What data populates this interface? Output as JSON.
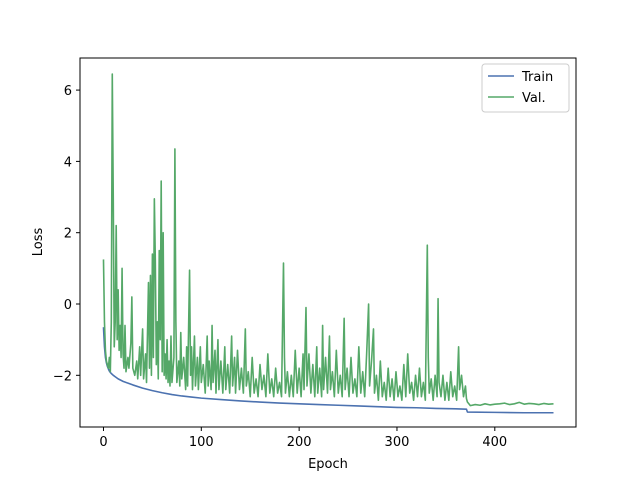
{
  "chart_data": {
    "type": "line",
    "title": "",
    "xlabel": "Epoch",
    "ylabel": "Loss",
    "xlim": [
      -24,
      483
    ],
    "ylim": [
      -3.45,
      6.9
    ],
    "xticks": [
      0,
      100,
      200,
      300,
      400
    ],
    "yticks": [
      -2,
      0,
      2,
      4,
      6
    ],
    "grid": false,
    "legend": "top-right",
    "series": [
      {
        "name": "Train",
        "color": "#4c72b0",
        "points": [
          [
            0,
            -0.65
          ],
          [
            1,
            -1.2
          ],
          [
            2,
            -1.5
          ],
          [
            3,
            -1.65
          ],
          [
            4,
            -1.75
          ],
          [
            5,
            -1.82
          ],
          [
            6,
            -1.88
          ],
          [
            7,
            -1.92
          ],
          [
            8,
            -1.95
          ],
          [
            10,
            -2.0
          ],
          [
            12,
            -2.04
          ],
          [
            15,
            -2.1
          ],
          [
            20,
            -2.17
          ],
          [
            25,
            -2.22
          ],
          [
            30,
            -2.27
          ],
          [
            40,
            -2.36
          ],
          [
            50,
            -2.43
          ],
          [
            60,
            -2.49
          ],
          [
            70,
            -2.54
          ],
          [
            80,
            -2.58
          ],
          [
            90,
            -2.61
          ],
          [
            100,
            -2.64
          ],
          [
            120,
            -2.68
          ],
          [
            140,
            -2.72
          ],
          [
            160,
            -2.75
          ],
          [
            180,
            -2.78
          ],
          [
            200,
            -2.8
          ],
          [
            220,
            -2.82
          ],
          [
            240,
            -2.84
          ],
          [
            260,
            -2.86
          ],
          [
            280,
            -2.88
          ],
          [
            300,
            -2.9
          ],
          [
            320,
            -2.91
          ],
          [
            340,
            -2.93
          ],
          [
            360,
            -2.94
          ],
          [
            371,
            -2.95
          ],
          [
            372,
            -3.03
          ],
          [
            400,
            -3.04
          ],
          [
            430,
            -3.05
          ],
          [
            460,
            -3.05
          ]
        ]
      },
      {
        "name": "Val.",
        "color": "#55a868",
        "points": [
          [
            0,
            1.25
          ],
          [
            1,
            -0.5
          ],
          [
            2,
            -1.3
          ],
          [
            3,
            -1.6
          ],
          [
            4,
            -1.7
          ],
          [
            5,
            -1.8
          ],
          [
            6,
            -1.5
          ],
          [
            7,
            -1.9
          ],
          [
            8,
            -0.5
          ],
          [
            9,
            6.45
          ],
          [
            10,
            3.0
          ],
          [
            11,
            -1.2
          ],
          [
            12,
            -0.5
          ],
          [
            13,
            2.2
          ],
          [
            14,
            -1.0
          ],
          [
            15,
            0.4
          ],
          [
            16,
            -1.3
          ],
          [
            17,
            -0.6
          ],
          [
            18,
            -1.5
          ],
          [
            19,
            1.0
          ],
          [
            20,
            -1.4
          ],
          [
            21,
            -1.8
          ],
          [
            22,
            -0.6
          ],
          [
            23,
            -1.9
          ],
          [
            25,
            -1.5
          ],
          [
            26,
            -1.8
          ],
          [
            28,
            -1.1
          ],
          [
            29,
            0.2
          ],
          [
            30,
            -1.8
          ],
          [
            32,
            -2.0
          ],
          [
            34,
            -1.6
          ],
          [
            35,
            -2.1
          ],
          [
            37,
            -1.2
          ],
          [
            38,
            -2.0
          ],
          [
            40,
            -0.7
          ],
          [
            41,
            -2.1
          ],
          [
            43,
            -1.4
          ],
          [
            44,
            -2.2
          ],
          [
            46,
            0.6
          ],
          [
            47,
            -1.8
          ],
          [
            48,
            0.8
          ],
          [
            49,
            -2.0
          ],
          [
            50,
            1.4
          ],
          [
            51,
            -1.5
          ],
          [
            52,
            2.95
          ],
          [
            53,
            1.2
          ],
          [
            54,
            -1.7
          ],
          [
            55,
            -0.5
          ],
          [
            56,
            -2.1
          ],
          [
            57,
            1.5
          ],
          [
            58,
            -1.0
          ],
          [
            59,
            3.45
          ],
          [
            60,
            -1.9
          ],
          [
            61,
            2.0
          ],
          [
            62,
            -2.0
          ],
          [
            63,
            -1.4
          ],
          [
            64,
            -2.1
          ],
          [
            65,
            -1.0
          ],
          [
            66,
            -2.2
          ],
          [
            67,
            -1.6
          ],
          [
            68,
            -2.3
          ],
          [
            69,
            -0.9
          ],
          [
            70,
            -2.2
          ],
          [
            72,
            -1.5
          ],
          [
            73,
            4.35
          ],
          [
            74,
            -0.5
          ],
          [
            75,
            -2.2
          ],
          [
            77,
            -1.6
          ],
          [
            78,
            -2.3
          ],
          [
            79,
            -0.8
          ],
          [
            80,
            -2.1
          ],
          [
            82,
            -1.5
          ],
          [
            84,
            -2.4
          ],
          [
            85,
            -1.2
          ],
          [
            86,
            -2.3
          ],
          [
            88,
            0.95
          ],
          [
            89,
            -2.0
          ],
          [
            90,
            -1.2
          ],
          [
            91,
            -2.4
          ],
          [
            93,
            -0.9
          ],
          [
            94,
            -2.3
          ],
          [
            96,
            -1.5
          ],
          [
            97,
            -2.4
          ],
          [
            99,
            -1.2
          ],
          [
            100,
            -2.2
          ],
          [
            102,
            -1.7
          ],
          [
            104,
            -2.5
          ],
          [
            106,
            -0.9
          ],
          [
            107,
            -2.3
          ],
          [
            108,
            -1.6
          ],
          [
            110,
            -2.4
          ],
          [
            111,
            -0.6
          ],
          [
            112,
            -2.2
          ],
          [
            114,
            -1.3
          ],
          [
            115,
            -2.5
          ],
          [
            117,
            -1.0
          ],
          [
            118,
            -2.4
          ],
          [
            120,
            -1.6
          ],
          [
            122,
            -2.5
          ],
          [
            124,
            -1.2
          ],
          [
            125,
            -2.4
          ],
          [
            127,
            -1.7
          ],
          [
            129,
            -2.5
          ],
          [
            131,
            -0.9
          ],
          [
            132,
            -2.3
          ],
          [
            134,
            -1.5
          ],
          [
            135,
            -2.5
          ],
          [
            137,
            -1.3
          ],
          [
            139,
            -2.4
          ],
          [
            141,
            -1.8
          ],
          [
            143,
            -2.5
          ],
          [
            145,
            -0.7
          ],
          [
            146,
            -2.3
          ],
          [
            148,
            -1.9
          ],
          [
            150,
            -2.6
          ],
          [
            152,
            -1.5
          ],
          [
            154,
            -2.5
          ],
          [
            156,
            -2.1
          ],
          [
            158,
            -2.6
          ],
          [
            160,
            -1.7
          ],
          [
            162,
            -2.4
          ],
          [
            164,
            -2.0
          ],
          [
            166,
            -2.6
          ],
          [
            168,
            -1.4
          ],
          [
            170,
            -2.5
          ],
          [
            172,
            -2.1
          ],
          [
            174,
            -2.6
          ],
          [
            176,
            -1.8
          ],
          [
            178,
            -2.5
          ],
          [
            180,
            -2.2
          ],
          [
            182,
            -2.6
          ],
          [
            184,
            1.15
          ],
          [
            185,
            -1.5
          ],
          [
            186,
            -2.5
          ],
          [
            188,
            -1.9
          ],
          [
            190,
            -2.6
          ],
          [
            192,
            -2.0
          ],
          [
            194,
            -2.6
          ],
          [
            196,
            -1.3
          ],
          [
            198,
            -2.5
          ],
          [
            200,
            -1.8
          ],
          [
            202,
            -2.6
          ],
          [
            204,
            -1.4
          ],
          [
            205,
            -2.4
          ],
          [
            207,
            -0.1
          ],
          [
            208,
            -2.3
          ],
          [
            210,
            -1.4
          ],
          [
            212,
            -2.5
          ],
          [
            214,
            -1.7
          ],
          [
            216,
            -2.6
          ],
          [
            218,
            -1.2
          ],
          [
            219,
            -2.5
          ],
          [
            221,
            -1.8
          ],
          [
            223,
            -2.6
          ],
          [
            224,
            -0.6
          ],
          [
            225,
            -2.4
          ],
          [
            227,
            -1.5
          ],
          [
            229,
            -2.5
          ],
          [
            231,
            -0.9
          ],
          [
            232,
            -2.4
          ],
          [
            234,
            -1.9
          ],
          [
            236,
            -2.6
          ],
          [
            238,
            -1.3
          ],
          [
            240,
            -2.5
          ],
          [
            242,
            -2.0
          ],
          [
            244,
            -2.6
          ],
          [
            246,
            -0.4
          ],
          [
            247,
            -2.4
          ],
          [
            249,
            -1.8
          ],
          [
            251,
            -2.6
          ],
          [
            253,
            -1.5
          ],
          [
            255,
            -2.5
          ],
          [
            257,
            -2.1
          ],
          [
            259,
            -2.6
          ],
          [
            261,
            -1.2
          ],
          [
            263,
            -2.5
          ],
          [
            265,
            -1.9
          ],
          [
            267,
            -2.6
          ],
          [
            269,
            -1.4
          ],
          [
            271,
            0.0
          ],
          [
            272,
            -2.3
          ],
          [
            274,
            -1.6
          ],
          [
            276,
            -0.7
          ],
          [
            277,
            -2.5
          ],
          [
            279,
            -2.0
          ],
          [
            281,
            -2.7
          ],
          [
            283,
            -1.6
          ],
          [
            285,
            -2.6
          ],
          [
            287,
            -2.2
          ],
          [
            289,
            -2.7
          ],
          [
            291,
            -1.8
          ],
          [
            293,
            -2.6
          ],
          [
            295,
            -2.1
          ],
          [
            297,
            -2.7
          ],
          [
            299,
            -1.9
          ],
          [
            301,
            -2.6
          ],
          [
            303,
            -2.3
          ],
          [
            305,
            -2.7
          ],
          [
            307,
            -1.7
          ],
          [
            309,
            -2.6
          ],
          [
            311,
            -1.4
          ],
          [
            313,
            -2.5
          ],
          [
            315,
            -2.2
          ],
          [
            317,
            -2.7
          ],
          [
            319,
            -2.0
          ],
          [
            321,
            -2.6
          ],
          [
            323,
            -1.8
          ],
          [
            325,
            -2.6
          ],
          [
            327,
            -2.2
          ],
          [
            329,
            -2.7
          ],
          [
            331,
            1.65
          ],
          [
            332,
            -1.5
          ],
          [
            333,
            -2.5
          ],
          [
            335,
            -2.1
          ],
          [
            337,
            -2.7
          ],
          [
            339,
            -2.0
          ],
          [
            341,
            -2.6
          ],
          [
            342,
            0.15
          ],
          [
            343,
            -2.2
          ],
          [
            345,
            -2.6
          ],
          [
            347,
            -2.0
          ],
          [
            349,
            -2.7
          ],
          [
            351,
            -2.2
          ],
          [
            353,
            -2.7
          ],
          [
            355,
            -1.9
          ],
          [
            357,
            -2.6
          ],
          [
            359,
            -2.3
          ],
          [
            361,
            -2.7
          ],
          [
            363,
            -1.2
          ],
          [
            364,
            -2.4
          ],
          [
            366,
            -2.0
          ],
          [
            368,
            -2.6
          ],
          [
            370,
            -2.3
          ],
          [
            371,
            -2.65
          ],
          [
            372,
            -2.75
          ],
          [
            375,
            -2.85
          ],
          [
            380,
            -2.82
          ],
          [
            385,
            -2.84
          ],
          [
            390,
            -2.8
          ],
          [
            395,
            -2.83
          ],
          [
            400,
            -2.81
          ],
          [
            405,
            -2.8
          ],
          [
            410,
            -2.78
          ],
          [
            415,
            -2.82
          ],
          [
            420,
            -2.8
          ],
          [
            425,
            -2.76
          ],
          [
            430,
            -2.81
          ],
          [
            435,
            -2.79
          ],
          [
            440,
            -2.8
          ],
          [
            445,
            -2.82
          ],
          [
            450,
            -2.79
          ],
          [
            455,
            -2.81
          ],
          [
            460,
            -2.8
          ]
        ]
      }
    ]
  }
}
